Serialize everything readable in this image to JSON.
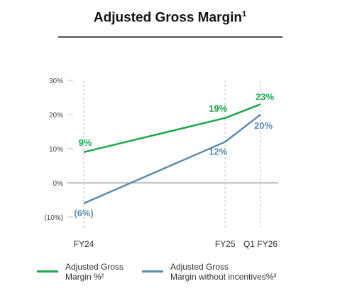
{
  "title": {
    "text": "Adjusted Gross Margin",
    "sup": "1"
  },
  "colors": {
    "green": "#1aa84b",
    "blue": "#5b8db0",
    "axis": "#888888",
    "grid": "#bbbbbb"
  },
  "chart_data": {
    "type": "line",
    "title": "Adjusted Gross Margin",
    "x": [
      0,
      4,
      5
    ],
    "categories": [
      "FY24",
      "FY25",
      "Q1 FY26"
    ],
    "ylim": [
      -10,
      30
    ],
    "yticks": [
      30,
      20,
      10,
      0,
      -10
    ],
    "ytick_labels": [
      "30%",
      "20%",
      "10%",
      "0%",
      "(10%)"
    ],
    "series": [
      {
        "name": "Adjusted Gross Margin %",
        "legend": [
          "Adjusted Gross",
          "Margin %²"
        ],
        "color": "#1aa84b",
        "values": [
          9,
          19,
          23
        ],
        "labels": [
          "9%",
          "19%",
          "23%"
        ]
      },
      {
        "name": "Adjusted Gross Margin without incentives%",
        "legend": [
          "Adjusted Gross",
          "Margin without incentives%³"
        ],
        "color": "#5b8db0",
        "values": [
          -6,
          12,
          20
        ],
        "labels": [
          "(6%)",
          "12%",
          "20%"
        ]
      }
    ],
    "legend_position": "bottom"
  }
}
